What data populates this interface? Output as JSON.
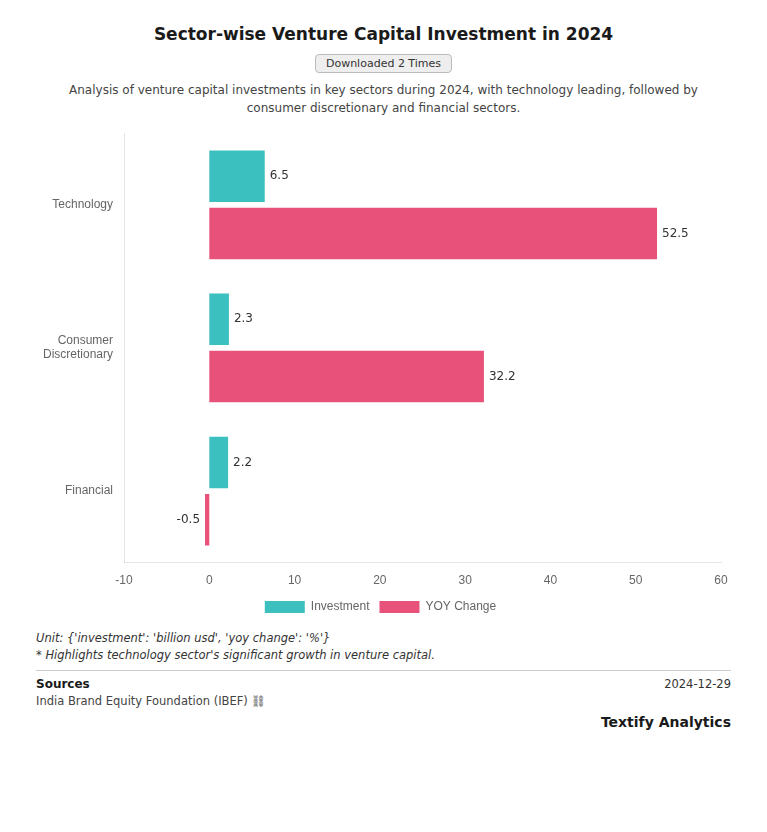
{
  "chart_data": {
    "type": "bar",
    "orientation": "horizontal",
    "title": "Sector-wise Venture Capital Investment in 2024",
    "subtitle": "Analysis of venture capital investments in key sectors during 2024, with technology leading, followed by\nconsumer discretionary and financial sectors.",
    "categories": [
      "Technology",
      "Consumer\nDiscretionary",
      "Financial"
    ],
    "series": [
      {
        "name": "Investment",
        "color": "#3BBFBF",
        "values": [
          6.5,
          2.3,
          2.2
        ]
      },
      {
        "name": "YOY Change",
        "color": "#E8527A",
        "values": [
          52.5,
          32.2,
          -0.5
        ]
      }
    ],
    "xlim": [
      -10,
      60
    ],
    "xticks": [
      -10,
      0,
      10,
      20,
      30,
      40,
      50,
      60
    ],
    "grid": false,
    "legend": "bottom",
    "data_labels": true,
    "annotations": [
      "Downloaded 2 Times",
      "Unit: {'investment': 'billion usd', 'yoy change': '%'}",
      "* Highlights technology sector's significant growth in venture capital.",
      "Sources",
      "India Brand Equity Foundation (IBEF)  ⛓",
      "2024-12-29",
      "Textify Analytics"
    ]
  }
}
